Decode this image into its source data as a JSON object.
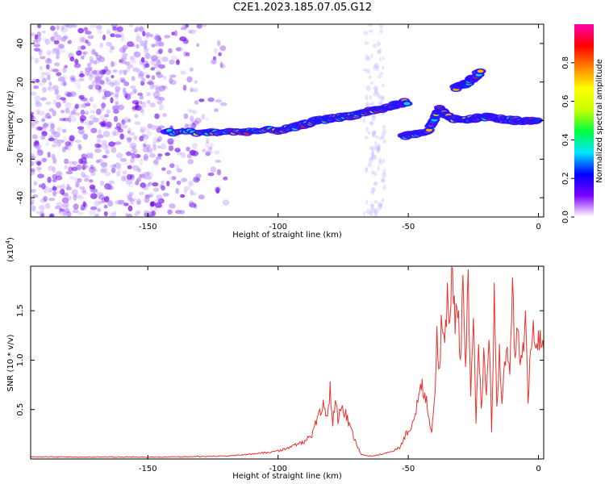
{
  "title": "C2E1.2023.185.07.05.G12",
  "chart_data": [
    {
      "type": "heatmap",
      "xlabel": "Height of straight line (km)",
      "ylabel": "Frequency (Hz)",
      "xlim": [
        -195,
        2
      ],
      "ylim": [
        -50,
        50
      ],
      "xticks": [
        -150,
        -100,
        -50,
        0
      ],
      "yticks": [
        -40,
        -20,
        0,
        20,
        40
      ],
      "colorbar": {
        "label": "Normalized spectral amplitude",
        "range": [
          0,
          1
        ],
        "ticks": [
          "0.0",
          "0.2",
          "0.4",
          "0.6",
          "0.8"
        ],
        "colors": [
          "#ffffff",
          "#7a00ff",
          "#0000ff",
          "#00e5ff",
          "#00ff40",
          "#c8ff00",
          "#ffff00",
          "#ff8000",
          "#ff0000",
          "#ff00b0"
        ]
      },
      "traces": [
        {
          "x": [
            -143,
            -130,
            -120,
            -110,
            -100,
            -95,
            -90,
            -85,
            -80,
            -75,
            -70,
            -65,
            -60,
            -55,
            -50
          ],
          "y": [
            -6,
            -6,
            -6,
            -5.5,
            -5,
            -4,
            -2,
            0,
            1,
            2,
            3,
            5,
            6,
            8,
            10
          ]
        },
        {
          "x": [
            -52,
            -47,
            -42,
            -38,
            -35,
            -30,
            -25,
            -20,
            -15,
            -10,
            -5,
            0
          ],
          "y": [
            -8,
            -7,
            -5,
            6,
            2,
            0,
            1,
            2,
            1,
            0,
            0,
            0
          ]
        },
        {
          "x": [
            -32,
            -28,
            -25,
            -22
          ],
          "y": [
            17,
            19,
            22,
            26
          ]
        }
      ]
    },
    {
      "type": "line",
      "xlabel": "Height of straight line (km)",
      "ylabel": "SNR (10 * v/v)",
      "yscale_label": "(x10",
      "yscale_exp": "4",
      "xlim": [
        -195,
        2
      ],
      "ylim": [
        0,
        1.95
      ],
      "xticks": [
        -150,
        -100,
        -50,
        0
      ],
      "yticks": [
        0.5,
        1.0,
        1.5
      ],
      "color": "#e8332d",
      "series": [
        {
          "x": [
            -195,
            -180,
            -160,
            -140,
            -120,
            -110,
            -100,
            -95,
            -90,
            -87,
            -85,
            -83,
            -81,
            -80,
            -79,
            -78,
            -77,
            -76,
            -74,
            -72,
            -70,
            -68,
            -66,
            -64,
            -62,
            -60,
            -56,
            -53,
            -51,
            -49,
            -47,
            -45,
            -43,
            -42,
            -41,
            -40,
            -39,
            -38,
            -37,
            -36,
            -35,
            -34,
            -33,
            -32,
            -31,
            -30,
            -29,
            -28,
            -27,
            -26,
            -25,
            -24,
            -23,
            -22,
            -21,
            -20,
            -19,
            -18,
            -17,
            -16,
            -15,
            -14,
            -13,
            -12,
            -11,
            -10,
            -9,
            -8,
            -7,
            -6,
            -5,
            -4,
            -3,
            -2,
            -1,
            0,
            1,
            2
          ],
          "y": [
            0.02,
            0.02,
            0.02,
            0.02,
            0.03,
            0.05,
            0.08,
            0.12,
            0.18,
            0.25,
            0.4,
            0.55,
            0.45,
            0.7,
            0.35,
            0.6,
            0.4,
            0.5,
            0.45,
            0.3,
            0.15,
            0.05,
            0.03,
            0.03,
            0.04,
            0.05,
            0.08,
            0.12,
            0.25,
            0.3,
            0.5,
            0.78,
            0.6,
            0.4,
            0.3,
            0.55,
            1.2,
            0.9,
            1.5,
            1.1,
            1.7,
            1.3,
            1.95,
            1.4,
            1.6,
            1.0,
            1.7,
            0.9,
            1.8,
            0.6,
            1.4,
            0.4,
            1.2,
            0.5,
            1.0,
            0.6,
            1.3,
            0.3,
            1.6,
            0.5,
            1.1,
            0.6,
            0.9,
            1.2,
            0.8,
            1.75,
            1.0,
            1.4,
            0.9,
            1.1,
            1.35,
            0.6,
            1.2,
            1.4,
            1.0,
            1.3,
            1.1,
            1.1
          ]
        }
      ]
    }
  ]
}
